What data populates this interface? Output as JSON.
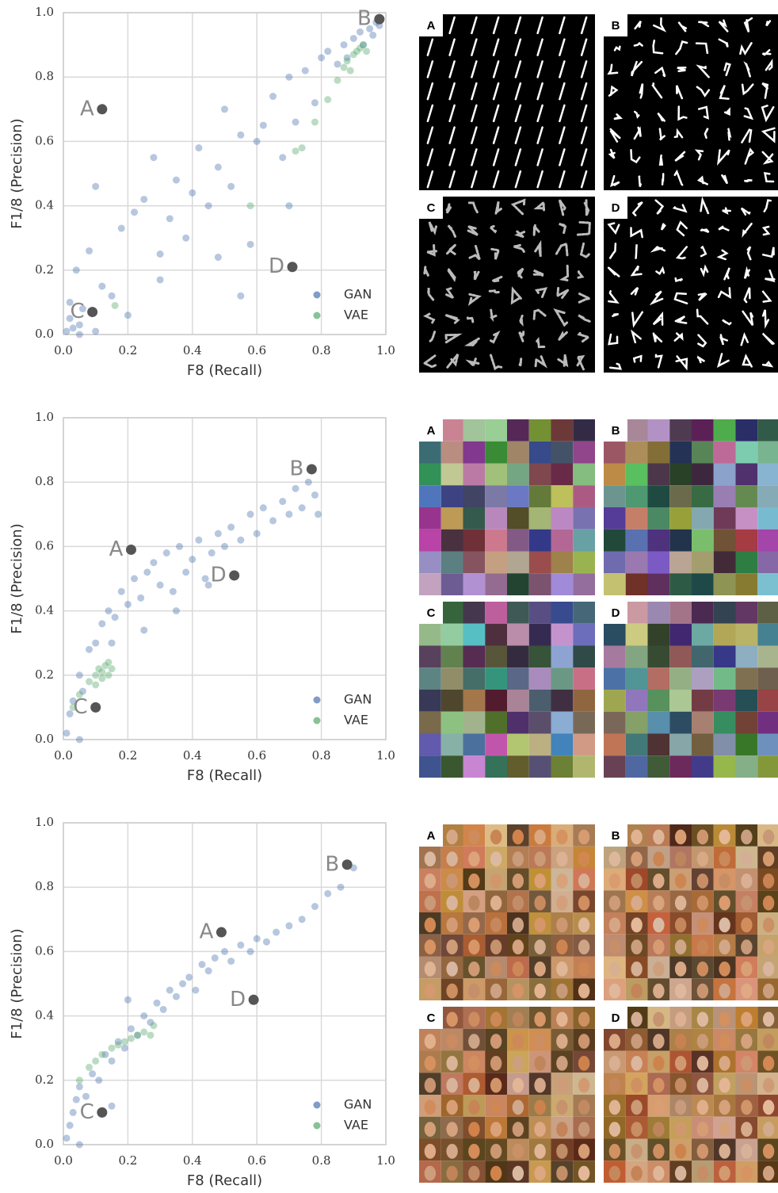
{
  "chart_data": [
    {
      "type": "scatter",
      "x_label": "F8 (Recall)",
      "y_label": "F1/8 (Precision)",
      "legend": "lower right",
      "grid": true,
      "xlim": [
        0,
        1
      ],
      "ylim": [
        0,
        1
      ],
      "xticks": [
        {
          "value": 0,
          "label": "0.0"
        },
        {
          "value": 0.2,
          "label": "0.2"
        },
        {
          "value": 0.4,
          "label": "0.4"
        },
        {
          "value": 0.6,
          "label": "0.6"
        },
        {
          "value": 0.8,
          "label": "0.8"
        },
        {
          "value": 1,
          "label": "1.0"
        }
      ],
      "yticks": [
        {
          "value": 0,
          "label": "0.0"
        },
        {
          "value": 0.2,
          "label": "0.2"
        },
        {
          "value": 0.4,
          "label": "0.4"
        },
        {
          "value": 0.6,
          "label": "0.6"
        },
        {
          "value": 0.8,
          "label": "0.8"
        },
        {
          "value": 1,
          "label": "1.0"
        }
      ],
      "series": [
        {
          "name": "GAN",
          "color": "#4c72b0",
          "x": [
            0.01,
            0.02,
            0.03,
            0.02,
            0.05,
            0.04,
            0.06,
            0.08,
            0.1,
            0.12,
            0.15,
            0.18,
            0.2,
            0.22,
            0.25,
            0.28,
            0.3,
            0.33,
            0.35,
            0.38,
            0.4,
            0.42,
            0.45,
            0.48,
            0.5,
            0.52,
            0.55,
            0.58,
            0.6,
            0.62,
            0.65,
            0.68,
            0.7,
            0.72,
            0.75,
            0.78,
            0.8,
            0.82,
            0.85,
            0.87,
            0.88,
            0.9,
            0.92,
            0.93,
            0.95,
            0.96,
            0.97,
            0.98,
            0.05,
            0.1,
            0.3,
            0.48,
            0.55,
            0.7
          ],
          "values": [
            0.01,
            0.05,
            0.02,
            0.1,
            0.03,
            0.2,
            0.08,
            0.26,
            0.46,
            0.15,
            0.12,
            0.33,
            0.06,
            0.38,
            0.42,
            0.55,
            0.25,
            0.36,
            0.48,
            0.3,
            0.44,
            0.58,
            0.4,
            0.52,
            0.7,
            0.46,
            0.62,
            0.28,
            0.6,
            0.65,
            0.74,
            0.55,
            0.8,
            0.66,
            0.82,
            0.72,
            0.86,
            0.88,
            0.84,
            0.9,
            0.86,
            0.92,
            0.94,
            0.9,
            0.95,
            0.93,
            0.97,
            0.96,
            0.0,
            0.01,
            0.17,
            0.24,
            0.12,
            0.4
          ]
        },
        {
          "name": "VAE",
          "color": "#55a868",
          "x": [
            0.16,
            0.58,
            0.72,
            0.74,
            0.78,
            0.82,
            0.85,
            0.87,
            0.88,
            0.9,
            0.91,
            0.92,
            0.93,
            0.94,
            0.89
          ],
          "values": [
            0.09,
            0.4,
            0.57,
            0.58,
            0.66,
            0.73,
            0.79,
            0.83,
            0.85,
            0.87,
            0.88,
            0.89,
            0.9,
            0.88,
            0.82
          ]
        }
      ],
      "highlights": [
        {
          "label": "A",
          "x": 0.12,
          "y": 0.7
        },
        {
          "label": "B",
          "x": 0.98,
          "y": 0.98
        },
        {
          "label": "C",
          "x": 0.09,
          "y": 0.07
        },
        {
          "label": "D",
          "x": 0.71,
          "y": 0.21
        }
      ]
    },
    {
      "type": "scatter",
      "x_label": "F8 (Recall)",
      "y_label": "F1/8 (Precision)",
      "legend": "lower right",
      "grid": true,
      "xlim": [
        0,
        1
      ],
      "ylim": [
        0,
        1
      ],
      "xticks": [
        {
          "value": 0,
          "label": "0.0"
        },
        {
          "value": 0.2,
          "label": "0.2"
        },
        {
          "value": 0.4,
          "label": "0.4"
        },
        {
          "value": 0.6,
          "label": "0.6"
        },
        {
          "value": 0.8,
          "label": "0.8"
        },
        {
          "value": 1,
          "label": "1.0"
        }
      ],
      "yticks": [
        {
          "value": 0,
          "label": "0.0"
        },
        {
          "value": 0.2,
          "label": "0.2"
        },
        {
          "value": 0.4,
          "label": "0.4"
        },
        {
          "value": 0.6,
          "label": "0.6"
        },
        {
          "value": 0.8,
          "label": "0.8"
        },
        {
          "value": 1,
          "label": "1.0"
        }
      ],
      "series": [
        {
          "name": "GAN",
          "color": "#4c72b0",
          "x": [
            0.01,
            0.02,
            0.03,
            0.05,
            0.06,
            0.08,
            0.1,
            0.12,
            0.14,
            0.16,
            0.18,
            0.2,
            0.22,
            0.24,
            0.26,
            0.28,
            0.3,
            0.32,
            0.34,
            0.36,
            0.38,
            0.4,
            0.42,
            0.44,
            0.46,
            0.48,
            0.5,
            0.52,
            0.55,
            0.58,
            0.6,
            0.62,
            0.65,
            0.68,
            0.7,
            0.72,
            0.74,
            0.76,
            0.78,
            0.79,
            0.15,
            0.25,
            0.35,
            0.45,
            0.05
          ],
          "values": [
            0.02,
            0.08,
            0.12,
            0.2,
            0.15,
            0.28,
            0.3,
            0.36,
            0.4,
            0.38,
            0.46,
            0.42,
            0.5,
            0.44,
            0.52,
            0.55,
            0.48,
            0.58,
            0.46,
            0.6,
            0.52,
            0.56,
            0.62,
            0.5,
            0.58,
            0.64,
            0.6,
            0.66,
            0.62,
            0.7,
            0.64,
            0.72,
            0.68,
            0.74,
            0.7,
            0.78,
            0.72,
            0.8,
            0.76,
            0.7,
            0.3,
            0.34,
            0.4,
            0.48,
            0.0
          ]
        },
        {
          "name": "VAE",
          "color": "#55a868",
          "x": [
            0.03,
            0.05,
            0.08,
            0.1,
            0.11,
            0.12,
            0.13,
            0.14,
            0.15,
            0.12,
            0.1,
            0.14
          ],
          "values": [
            0.1,
            0.14,
            0.18,
            0.2,
            0.22,
            0.21,
            0.23,
            0.24,
            0.22,
            0.19,
            0.17,
            0.2
          ]
        }
      ],
      "highlights": [
        {
          "label": "A",
          "x": 0.21,
          "y": 0.59
        },
        {
          "label": "B",
          "x": 0.77,
          "y": 0.84
        },
        {
          "label": "C",
          "x": 0.1,
          "y": 0.1
        },
        {
          "label": "D",
          "x": 0.53,
          "y": 0.51
        }
      ]
    },
    {
      "type": "scatter",
      "x_label": "F8 (Recall)",
      "y_label": "F1/8 (Precision)",
      "legend": "lower right",
      "grid": true,
      "xlim": [
        0,
        1
      ],
      "ylim": [
        0,
        1
      ],
      "xticks": [
        {
          "value": 0,
          "label": "0.0"
        },
        {
          "value": 0.2,
          "label": "0.2"
        },
        {
          "value": 0.4,
          "label": "0.4"
        },
        {
          "value": 0.6,
          "label": "0.6"
        },
        {
          "value": 0.8,
          "label": "0.8"
        },
        {
          "value": 1,
          "label": "1.0"
        }
      ],
      "yticks": [
        {
          "value": 0,
          "label": "0.0"
        },
        {
          "value": 0.2,
          "label": "0.2"
        },
        {
          "value": 0.4,
          "label": "0.4"
        },
        {
          "value": 0.6,
          "label": "0.6"
        },
        {
          "value": 0.8,
          "label": "0.8"
        },
        {
          "value": 1,
          "label": "1.0"
        }
      ],
      "series": [
        {
          "name": "GAN",
          "color": "#4c72b0",
          "x": [
            0.01,
            0.02,
            0.03,
            0.04,
            0.05,
            0.07,
            0.09,
            0.11,
            0.13,
            0.15,
            0.17,
            0.19,
            0.21,
            0.23,
            0.25,
            0.27,
            0.29,
            0.31,
            0.33,
            0.35,
            0.37,
            0.39,
            0.41,
            0.43,
            0.45,
            0.47,
            0.5,
            0.52,
            0.55,
            0.58,
            0.6,
            0.63,
            0.66,
            0.7,
            0.74,
            0.78,
            0.82,
            0.86,
            0.9,
            0.15,
            0.2,
            0.05
          ],
          "values": [
            0.02,
            0.06,
            0.1,
            0.14,
            0.18,
            0.15,
            0.22,
            0.2,
            0.28,
            0.26,
            0.32,
            0.3,
            0.36,
            0.34,
            0.4,
            0.38,
            0.44,
            0.42,
            0.48,
            0.46,
            0.5,
            0.52,
            0.48,
            0.56,
            0.54,
            0.58,
            0.6,
            0.57,
            0.62,
            0.6,
            0.64,
            0.63,
            0.66,
            0.68,
            0.7,
            0.74,
            0.78,
            0.8,
            0.86,
            0.12,
            0.45,
            0.0
          ]
        },
        {
          "name": "VAE",
          "color": "#55a868",
          "x": [
            0.05,
            0.08,
            0.1,
            0.12,
            0.15,
            0.17,
            0.19,
            0.21,
            0.23,
            0.25,
            0.27,
            0.28
          ],
          "values": [
            0.2,
            0.24,
            0.26,
            0.28,
            0.3,
            0.31,
            0.32,
            0.33,
            0.34,
            0.35,
            0.34,
            0.37
          ]
        }
      ],
      "highlights": [
        {
          "label": "A",
          "x": 0.49,
          "y": 0.66
        },
        {
          "label": "B",
          "x": 0.88,
          "y": 0.87
        },
        {
          "label": "C",
          "x": 0.12,
          "y": 0.1
        },
        {
          "label": "D",
          "x": 0.59,
          "y": 0.45
        }
      ]
    }
  ]
}
